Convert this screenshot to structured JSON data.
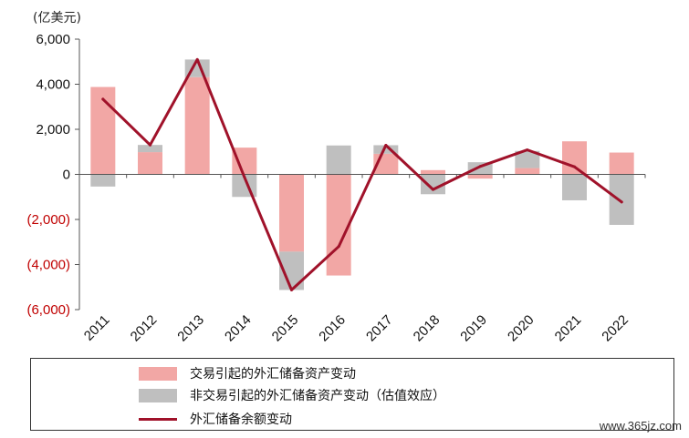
{
  "chart_data": {
    "type": "bar",
    "title": "",
    "unit_label": "(亿美元)",
    "categories": [
      "2011",
      "2012",
      "2013",
      "2014",
      "2015",
      "2016",
      "2017",
      "2018",
      "2019",
      "2020",
      "2021",
      "2022"
    ],
    "series": [
      {
        "name": "交易引起的外汇储备资产变动",
        "kind": "stacked-bar",
        "color": "#f2a7a5",
        "values": [
          3878,
          987,
          4314,
          1188,
          -3429,
          -4487,
          915,
          189,
          -188,
          280,
          1467,
          968
        ]
      },
      {
        "name": "非交易引起的外汇储备资产变动（估值效应）",
        "kind": "stacked-bar",
        "color": "#bfbfbf",
        "values": [
          -540,
          319,
          783,
          -1000,
          -1700,
          1283,
          380,
          -880,
          540,
          760,
          -1150,
          -2240
        ]
      },
      {
        "name": "外汇储备余额变动",
        "kind": "line",
        "color": "#a0122a",
        "values": [
          3338,
          1304,
          5097,
          -117,
          -5127,
          -3198,
          1294,
          -672,
          352,
          1086,
          336,
          -1225
        ]
      }
    ],
    "y_ticks": [
      "6,000",
      "4,000",
      "2,000",
      "0",
      "(2,000)",
      "(4,000)",
      "(6,000)"
    ],
    "y_tick_values": [
      6000,
      4000,
      2000,
      0,
      -2000,
      -4000,
      -6000
    ],
    "ylim": [
      -6000,
      6000
    ],
    "negative_tick_color": "#c00000",
    "grid": false,
    "legend_position": "bottom"
  },
  "watermark": "www.365jz.com"
}
